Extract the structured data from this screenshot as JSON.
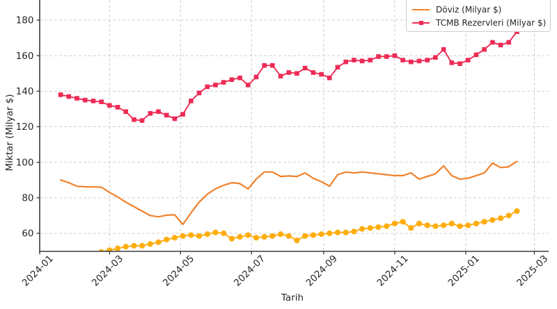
{
  "figure": {
    "y_axis_label": "Miktar (Milyar $)",
    "x_axis_label": "Tarih",
    "y_ticks": [
      180,
      160,
      140,
      120,
      100,
      80,
      60
    ],
    "x_ticks": [
      "2024-01",
      "2024-03",
      "2024-05",
      "2024-07",
      "2024-09",
      "2024-11",
      "2025-01",
      "2025-03"
    ],
    "grid": true,
    "grid_color": "#cfcfcf",
    "spine_color": "#3a3a3a",
    "tick_label_color": "#262626"
  },
  "legend": {
    "position": "top-right (top edge cut off by screenshot)",
    "entries": [
      {
        "label": "Döviz (Milyar $)",
        "color": "#F0812B",
        "marker": "none"
      },
      {
        "label": "TCMB Rezervleri (Milyar $)",
        "color": "#ED2B55",
        "marker": "square"
      }
    ]
  },
  "chart_data": {
    "type": "line",
    "title": "",
    "xlabel": "Tarih",
    "ylabel": "Miktar (Milyar $)",
    "x_range_visible": [
      "2024-01-01",
      "2025-03-14"
    ],
    "ylim_visible": [
      49.8,
      191.3
    ],
    "x": [
      "2024-01-19",
      "2024-01-26",
      "2024-02-02",
      "2024-02-09",
      "2024-02-16",
      "2024-02-23",
      "2024-03-01",
      "2024-03-08",
      "2024-03-15",
      "2024-03-22",
      "2024-03-29",
      "2024-04-05",
      "2024-04-12",
      "2024-04-19",
      "2024-04-26",
      "2024-05-03",
      "2024-05-10",
      "2024-05-17",
      "2024-05-24",
      "2024-05-31",
      "2024-06-07",
      "2024-06-14",
      "2024-06-21",
      "2024-06-28",
      "2024-07-05",
      "2024-07-12",
      "2024-07-19",
      "2024-07-26",
      "2024-08-02",
      "2024-08-09",
      "2024-08-16",
      "2024-08-23",
      "2024-08-30",
      "2024-09-06",
      "2024-09-13",
      "2024-09-20",
      "2024-09-27",
      "2024-10-04",
      "2024-10-11",
      "2024-10-18",
      "2024-10-25",
      "2024-11-01",
      "2024-11-08",
      "2024-11-15",
      "2024-11-22",
      "2024-11-29",
      "2024-12-06",
      "2024-12-13",
      "2024-12-20",
      "2024-12-27",
      "2025-01-03",
      "2025-01-10",
      "2025-01-17",
      "2025-01-24",
      "2025-01-31",
      "2025-02-07",
      "2025-02-14"
    ],
    "series": [
      {
        "name": "Döviz (Milyar $)",
        "color": "#F0812B",
        "marker": "none",
        "line_width": 2.2,
        "values": [
          90,
          88.5,
          86.5,
          86.2,
          86.1,
          86,
          83,
          80.5,
          77.5,
          75,
          72.5,
          70,
          69.3,
          70.2,
          70.4,
          65,
          71.5,
          77.5,
          82,
          85,
          87,
          88.5,
          88,
          85,
          90.5,
          94.5,
          94.5,
          92,
          92.3,
          92,
          94,
          91,
          89,
          86.5,
          93,
          94.5,
          94,
          94.5,
          94,
          93.5,
          93,
          92.5,
          92.5,
          94,
          90.5,
          92,
          93.5,
          98,
          92.5,
          90.5,
          91,
          92.5,
          94,
          99.5,
          97,
          97.5,
          100.5
        ]
      },
      {
        "name": "TCMB Rezervleri (Milyar $)",
        "color": "#ED2B55",
        "marker": "square",
        "line_width": 1.9,
        "values": [
          138,
          137,
          136,
          135,
          134.5,
          134,
          132,
          131,
          128.5,
          124,
          123.5,
          127.5,
          128.5,
          126.5,
          124.5,
          127,
          134.5,
          139,
          142.5,
          143.5,
          145,
          146.5,
          147.5,
          143.5,
          148,
          154.5,
          154.5,
          148.5,
          150.5,
          150,
          153,
          150.5,
          149.5,
          147.5,
          153.5,
          156.5,
          157.5,
          157,
          157.5,
          159.5,
          159.5,
          160,
          157.5,
          156.5,
          157,
          157.5,
          159,
          163.5,
          156,
          155.5,
          157.5,
          160.5,
          163.5,
          167.5,
          166,
          167.5,
          173.5
        ]
      },
      {
        "name": "series-3 (yellow, legend entry cut off at top of screenshot)",
        "color": "#FFAD0E",
        "marker": "circle",
        "line_width": 2,
        "values": [
          null,
          null,
          null,
          null,
          null,
          49.5,
          50.5,
          51.5,
          52.5,
          53,
          53,
          54,
          55,
          56.5,
          57.5,
          58.5,
          59,
          58.5,
          59.5,
          60.5,
          60,
          57,
          58,
          59,
          57.5,
          58,
          58.5,
          59.5,
          58.5,
          56,
          58.5,
          59,
          59.5,
          60,
          60.5,
          60.5,
          61,
          62.5,
          63,
          63.5,
          64,
          65.5,
          66.5,
          63,
          65.5,
          64.5,
          64,
          64.5,
          65.5,
          64,
          64.5,
          65.5,
          66.5,
          67.5,
          68.5,
          70,
          72.5
        ]
      }
    ]
  }
}
